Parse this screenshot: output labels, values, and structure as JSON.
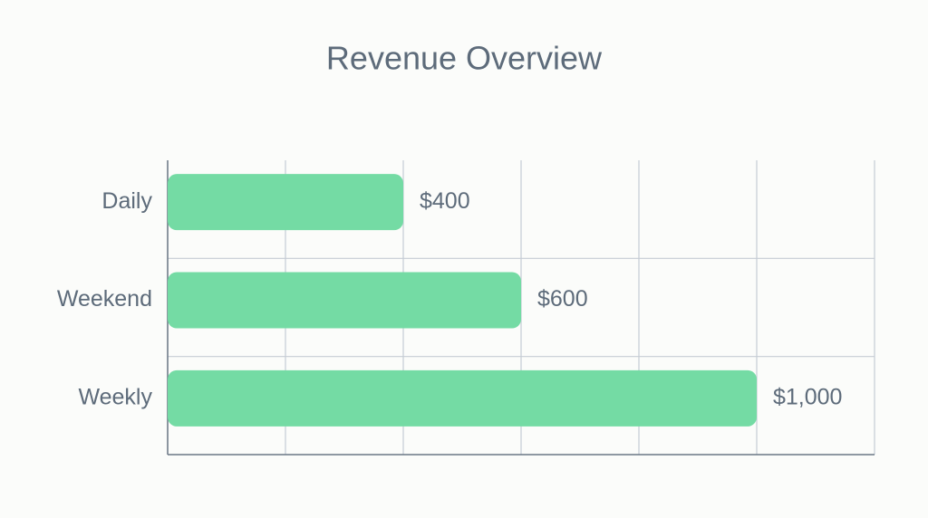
{
  "chart_data": {
    "type": "bar",
    "orientation": "horizontal",
    "title": "Revenue Overview",
    "categories": [
      "Daily",
      "Weekend",
      "Weekly"
    ],
    "values": [
      400,
      600,
      1000
    ],
    "value_labels": [
      "$400",
      "$600",
      "$1,000"
    ],
    "color": "#74dba4",
    "xlim": [
      0,
      1200
    ],
    "xticks": [
      0,
      200,
      400,
      600,
      800,
      1000,
      1200
    ],
    "grid": true
  }
}
